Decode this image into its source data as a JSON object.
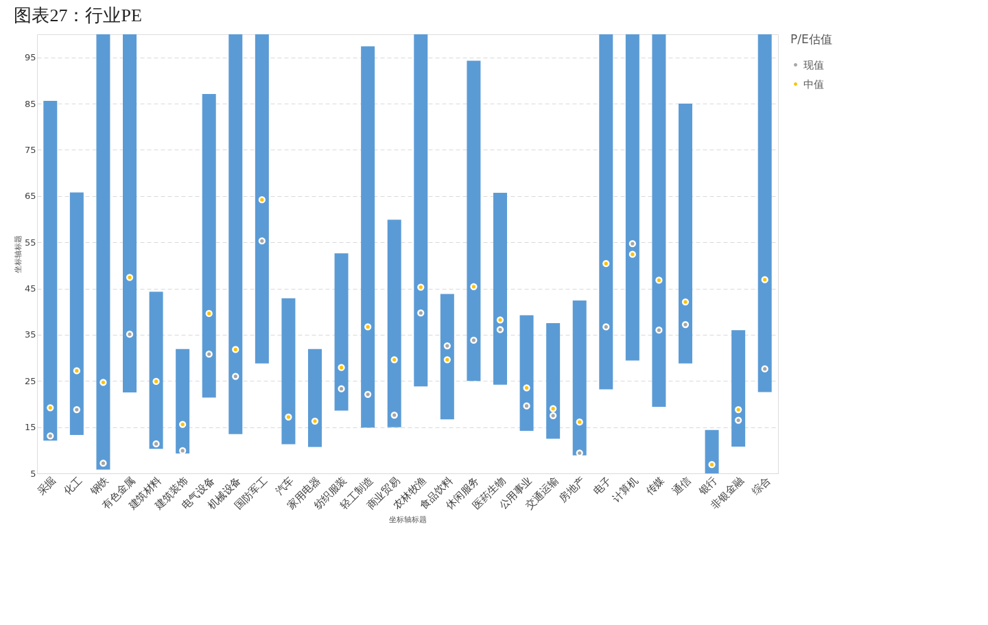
{
  "chart_data": {
    "type": "bar",
    "title": "图表27：行业PE",
    "xlabel": "坐标轴标题",
    "ylabel": "坐标轴标题",
    "legend_title": "P/E估值",
    "categories": [
      "采掘",
      "化工",
      "钢铁",
      "有色金属",
      "建筑材料",
      "建筑装饰",
      "电气设备",
      "机械设备",
      "国防军工",
      "汽车",
      "家用电器",
      "纺织服装",
      "轻工制造",
      "商业贸易",
      "农林牧渔",
      "食品饮料",
      "休闲服务",
      "医药生物",
      "公用事业",
      "交通运输",
      "房地产",
      "电子",
      "计算机",
      "传媒",
      "通信",
      "银行",
      "非银金融",
      "综合"
    ],
    "series": [
      {
        "color": "#5b9bd5",
        "base": [
          12.1,
          13.3,
          5.8,
          22.5,
          10.3,
          9.3,
          21.4,
          13.5,
          28.8,
          11.3,
          10.7,
          18.6,
          14.9,
          15.0,
          23.8,
          16.7,
          25.0,
          24.2,
          14.2,
          12.5,
          8.9,
          23.2,
          29.4,
          19.4,
          28.8,
          5,
          10.8,
          22.6
        ],
        "values": [
          73.5,
          52.5,
          94.2,
          77.5,
          34.0,
          22.6,
          65.7,
          86.5,
          71.2,
          31.6,
          21.2,
          34.0,
          82.5,
          44.9,
          76.2,
          27.1,
          69.3,
          41.5,
          25.0,
          25.0,
          33.5,
          76.8,
          70.6,
          80.6,
          56.2,
          9.4,
          25.2,
          77.4
        ]
      },
      {
        "type": "scatter",
        "name": "现值",
        "color": "#a5a5a5",
        "values": [
          13.1,
          18.8,
          7.2,
          35.1,
          11.4,
          9.9,
          30.8,
          26.0,
          55.3,
          null,
          null,
          23.3,
          22.1,
          17.6,
          39.7,
          32.6,
          33.8,
          36.1,
          19.6,
          17.5,
          9.4,
          36.7,
          54.7,
          36.0,
          37.2,
          null,
          16.5,
          27.6
        ]
      },
      {
        "type": "scatter",
        "name": "中值",
        "color": "#ffc000",
        "values": [
          19.2,
          27.2,
          24.7,
          47.4,
          24.9,
          15.6,
          39.6,
          31.8,
          64.2,
          17.2,
          16.3,
          27.9,
          36.7,
          29.6,
          45.3,
          29.6,
          45.4,
          38.2,
          23.5,
          19.0,
          16.1,
          50.4,
          52.4,
          46.8,
          42.1,
          6.9,
          18.8,
          46.9
        ]
      }
    ],
    "ylim": [
      5,
      100
    ],
    "yticks": [
      5,
      15,
      25,
      35,
      45,
      55,
      65,
      75,
      85,
      95
    ],
    "grid": "y",
    "legend": "right",
    "marker": "circle"
  }
}
